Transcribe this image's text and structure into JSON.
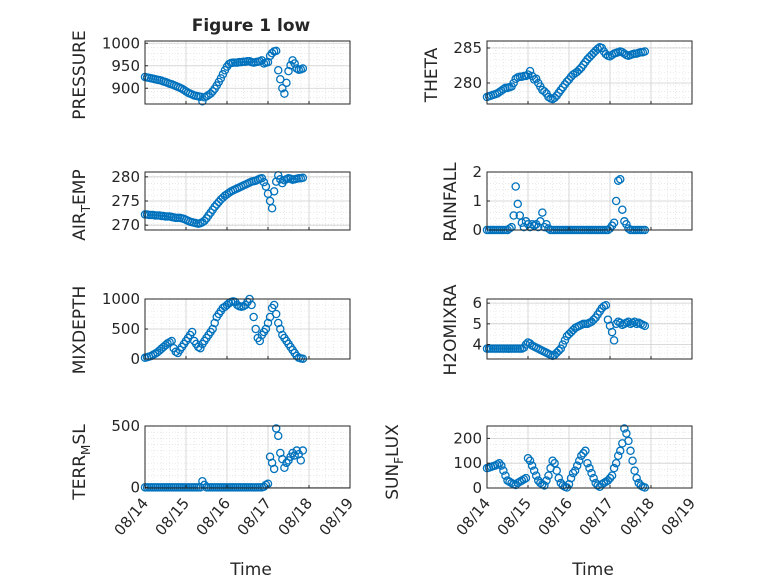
{
  "figure_title": "Figure 1 low",
  "xlabel": "Time",
  "x_tick_labels": [
    "08/14",
    "08/15",
    "08/16",
    "08/17",
    "08/18",
    "08/19"
  ],
  "marker_color": "#0072BD",
  "chart_data": [
    {
      "type": "scatter",
      "title": "Figure 1 low",
      "ylabel": "PRESSURE",
      "xlim": [
        0,
        5
      ],
      "ylim": [
        865,
        1005
      ],
      "yticks": [
        900,
        950,
        1000
      ],
      "grid": true,
      "x": [
        0.0,
        0.05,
        0.1,
        0.15,
        0.2,
        0.25,
        0.3,
        0.35,
        0.4,
        0.45,
        0.5,
        0.55,
        0.6,
        0.65,
        0.7,
        0.75,
        0.8,
        0.85,
        0.9,
        0.95,
        1.0,
        1.05,
        1.1,
        1.15,
        1.2,
        1.25,
        1.3,
        1.35,
        1.4,
        1.45,
        1.5,
        1.55,
        1.6,
        1.65,
        1.7,
        1.75,
        1.8,
        1.85,
        1.9,
        1.95,
        2.0,
        2.05,
        2.1,
        2.15,
        2.2,
        2.25,
        2.3,
        2.35,
        2.4,
        2.45,
        2.5,
        2.55,
        2.6,
        2.65,
        2.7,
        2.75,
        2.8,
        2.85,
        2.9,
        2.95,
        3.0,
        3.05,
        3.1,
        3.15,
        3.2,
        3.25,
        3.3,
        3.35,
        3.4,
        3.45,
        3.5,
        3.55,
        3.6,
        3.65,
        3.7,
        3.75,
        3.8,
        3.85
      ],
      "y": [
        925,
        924,
        923,
        922,
        921,
        920,
        919,
        918,
        917,
        915,
        914,
        912,
        910,
        909,
        907,
        905,
        903,
        901,
        899,
        896,
        893,
        890,
        888,
        886,
        884,
        883,
        882,
        881,
        871,
        880,
        882,
        885,
        888,
        893,
        899,
        906,
        914,
        922,
        931,
        940,
        948,
        954,
        956,
        957,
        957,
        957,
        958,
        958,
        959,
        959,
        960,
        960,
        958,
        957,
        958,
        959,
        960,
        962,
        955,
        957,
        958,
        972,
        978,
        982,
        983,
        940,
        920,
        900,
        888,
        912,
        938,
        951,
        962,
        955,
        944,
        941,
        942,
        944
      ]
    },
    {
      "type": "scatter",
      "ylabel": "THETA",
      "xlim": [
        0,
        5
      ],
      "ylim": [
        277,
        286
      ],
      "yticks": [
        280,
        285
      ],
      "grid": true,
      "x": [
        0.0,
        0.05,
        0.1,
        0.15,
        0.2,
        0.25,
        0.3,
        0.35,
        0.4,
        0.45,
        0.5,
        0.55,
        0.6,
        0.65,
        0.7,
        0.75,
        0.8,
        0.85,
        0.9,
        0.95,
        1.0,
        1.05,
        1.1,
        1.15,
        1.2,
        1.25,
        1.3,
        1.35,
        1.4,
        1.45,
        1.5,
        1.55,
        1.6,
        1.65,
        1.7,
        1.75,
        1.8,
        1.85,
        1.9,
        1.95,
        2.0,
        2.05,
        2.1,
        2.15,
        2.2,
        2.25,
        2.3,
        2.35,
        2.4,
        2.45,
        2.5,
        2.55,
        2.6,
        2.65,
        2.7,
        2.75,
        2.8,
        2.85,
        2.9,
        2.95,
        3.0,
        3.05,
        3.1,
        3.15,
        3.2,
        3.25,
        3.3,
        3.35,
        3.4,
        3.45,
        3.5,
        3.55,
        3.6,
        3.65,
        3.7,
        3.75,
        3.8,
        3.85
      ],
      "y": [
        278.0,
        278.1,
        278.2,
        278.3,
        278.4,
        278.5,
        278.7,
        278.9,
        279.1,
        279.3,
        279.3,
        279.4,
        279.5,
        280.0,
        280.6,
        280.8,
        280.9,
        280.9,
        281.0,
        281.0,
        281.2,
        281.7,
        281.0,
        280.5,
        280.6,
        280.0,
        279.5,
        279.0,
        278.8,
        278.5,
        278.0,
        277.8,
        277.7,
        277.9,
        278.2,
        278.6,
        279.0,
        279.4,
        279.8,
        280.2,
        280.5,
        280.9,
        281.2,
        281.4,
        281.6,
        281.9,
        282.2,
        282.6,
        283.0,
        283.4,
        283.7,
        284.0,
        284.3,
        284.6,
        284.9,
        285.1,
        285.0,
        284.5,
        284.1,
        283.9,
        283.8,
        284.0,
        284.2,
        284.3,
        284.4,
        284.5,
        284.4,
        284.2,
        284.0,
        283.9,
        284.0,
        284.1,
        284.2,
        284.2,
        284.3,
        284.4,
        284.4,
        284.5
      ]
    },
    {
      "type": "scatter",
      "ylabel": "AIR_TEMP",
      "xlim": [
        0,
        5
      ],
      "ylim": [
        269,
        281
      ],
      "yticks": [
        270,
        275,
        280
      ],
      "grid": true,
      "x": [
        0.0,
        0.05,
        0.1,
        0.15,
        0.2,
        0.25,
        0.3,
        0.35,
        0.4,
        0.45,
        0.5,
        0.55,
        0.6,
        0.65,
        0.7,
        0.75,
        0.8,
        0.85,
        0.9,
        0.95,
        1.0,
        1.05,
        1.1,
        1.15,
        1.2,
        1.25,
        1.3,
        1.35,
        1.4,
        1.45,
        1.5,
        1.55,
        1.6,
        1.65,
        1.7,
        1.75,
        1.8,
        1.85,
        1.9,
        1.95,
        2.0,
        2.05,
        2.1,
        2.15,
        2.2,
        2.25,
        2.3,
        2.35,
        2.4,
        2.45,
        2.5,
        2.55,
        2.6,
        2.65,
        2.7,
        2.75,
        2.8,
        2.85,
        2.9,
        2.95,
        3.0,
        3.05,
        3.1,
        3.15,
        3.2,
        3.25,
        3.3,
        3.35,
        3.4,
        3.45,
        3.5,
        3.55,
        3.6,
        3.65,
        3.7,
        3.75,
        3.8,
        3.85
      ],
      "y": [
        272.2,
        272.2,
        272.1,
        272.1,
        272.1,
        272.0,
        272.0,
        272.0,
        271.9,
        271.9,
        271.8,
        271.8,
        271.8,
        271.7,
        271.6,
        271.5,
        271.5,
        271.5,
        271.4,
        271.3,
        271.1,
        270.9,
        270.7,
        270.6,
        270.5,
        270.4,
        270.3,
        270.4,
        270.6,
        270.9,
        271.4,
        272.0,
        272.6,
        273.2,
        273.8,
        274.3,
        274.8,
        275.3,
        275.7,
        276.1,
        276.4,
        276.7,
        277.0,
        277.2,
        277.4,
        277.6,
        277.8,
        278.0,
        278.2,
        278.4,
        278.6,
        278.8,
        279.0,
        279.1,
        279.2,
        279.4,
        279.6,
        279.7,
        278.9,
        278.0,
        276.5,
        275.0,
        273.5,
        277.0,
        279.0,
        280.3,
        279.5,
        278.7,
        279.3,
        279.5,
        279.7,
        279.6,
        279.4,
        279.5,
        279.6,
        279.7,
        279.7,
        279.8
      ]
    },
    {
      "type": "scatter",
      "ylabel": "RAINFALL",
      "xlim": [
        0,
        5
      ],
      "ylim": [
        0,
        2
      ],
      "yticks": [
        0,
        1,
        2
      ],
      "grid": true,
      "x": [
        0.0,
        0.05,
        0.1,
        0.15,
        0.2,
        0.25,
        0.3,
        0.35,
        0.4,
        0.45,
        0.5,
        0.55,
        0.6,
        0.65,
        0.7,
        0.75,
        0.8,
        0.85,
        0.9,
        0.95,
        1.0,
        1.05,
        1.1,
        1.15,
        1.2,
        1.25,
        1.3,
        1.35,
        1.4,
        1.45,
        1.5,
        1.55,
        1.6,
        1.65,
        1.7,
        1.75,
        1.8,
        1.85,
        1.9,
        1.95,
        2.0,
        2.05,
        2.1,
        2.15,
        2.2,
        2.25,
        2.3,
        2.35,
        2.4,
        2.45,
        2.5,
        2.55,
        2.6,
        2.65,
        2.7,
        2.75,
        2.8,
        2.85,
        2.9,
        2.95,
        3.0,
        3.05,
        3.1,
        3.15,
        3.2,
        3.25,
        3.3,
        3.35,
        3.4,
        3.45,
        3.5,
        3.55,
        3.6,
        3.65,
        3.7,
        3.75,
        3.8,
        3.85
      ],
      "y": [
        0,
        0,
        0,
        0,
        0,
        0,
        0,
        0,
        0,
        0,
        0,
        0.05,
        0.1,
        0.5,
        1.5,
        0.9,
        0.5,
        0.25,
        0.1,
        0.3,
        0.2,
        0.1,
        0.2,
        0.15,
        0.2,
        0.1,
        0.3,
        0.6,
        0.1,
        0.2,
        0.05,
        0,
        0,
        0,
        0,
        0,
        0,
        0,
        0,
        0,
        0,
        0,
        0,
        0,
        0,
        0,
        0,
        0,
        0,
        0,
        0,
        0,
        0,
        0,
        0,
        0,
        0,
        0,
        0,
        0,
        0.05,
        0.15,
        0.25,
        1.0,
        1.7,
        1.75,
        0.7,
        0.3,
        0.2,
        0.05,
        0,
        0,
        0,
        0,
        0,
        0,
        0,
        0
      ]
    },
    {
      "type": "scatter",
      "ylabel": "MIXDEPTH",
      "xlim": [
        0,
        5
      ],
      "ylim": [
        0,
        1000
      ],
      "yticks": [
        0,
        500,
        1000
      ],
      "grid": true,
      "x": [
        0.0,
        0.05,
        0.1,
        0.15,
        0.2,
        0.25,
        0.3,
        0.35,
        0.4,
        0.45,
        0.5,
        0.55,
        0.6,
        0.65,
        0.7,
        0.75,
        0.8,
        0.85,
        0.9,
        0.95,
        1.0,
        1.05,
        1.1,
        1.15,
        1.2,
        1.25,
        1.3,
        1.35,
        1.4,
        1.45,
        1.5,
        1.55,
        1.6,
        1.65,
        1.7,
        1.75,
        1.8,
        1.85,
        1.9,
        1.95,
        2.0,
        2.05,
        2.1,
        2.15,
        2.2,
        2.25,
        2.3,
        2.35,
        2.4,
        2.45,
        2.5,
        2.55,
        2.6,
        2.65,
        2.7,
        2.75,
        2.8,
        2.85,
        2.9,
        2.95,
        3.0,
        3.05,
        3.1,
        3.15,
        3.2,
        3.25,
        3.3,
        3.35,
        3.4,
        3.45,
        3.5,
        3.55,
        3.6,
        3.65,
        3.7,
        3.75,
        3.8,
        3.85
      ],
      "y": [
        20,
        30,
        40,
        50,
        70,
        90,
        110,
        140,
        170,
        200,
        230,
        260,
        280,
        300,
        180,
        120,
        100,
        150,
        200,
        250,
        300,
        350,
        400,
        450,
        300,
        250,
        200,
        180,
        250,
        300,
        350,
        400,
        450,
        500,
        600,
        700,
        750,
        800,
        850,
        870,
        900,
        930,
        950,
        960,
        950,
        900,
        880,
        870,
        880,
        900,
        950,
        1000,
        900,
        700,
        500,
        350,
        300,
        400,
        450,
        500,
        600,
        700,
        850,
        900,
        750,
        600,
        500,
        400,
        350,
        300,
        250,
        200,
        150,
        100,
        50,
        20,
        10,
        5
      ]
    },
    {
      "type": "scatter",
      "ylabel": "H2OMIXRA",
      "xlim": [
        0,
        5
      ],
      "ylim": [
        3.3,
        6.2
      ],
      "yticks": [
        4,
        5,
        6
      ],
      "grid": true,
      "x": [
        0.0,
        0.05,
        0.1,
        0.15,
        0.2,
        0.25,
        0.3,
        0.35,
        0.4,
        0.45,
        0.5,
        0.55,
        0.6,
        0.65,
        0.7,
        0.75,
        0.8,
        0.85,
        0.9,
        0.95,
        1.0,
        1.05,
        1.1,
        1.15,
        1.2,
        1.25,
        1.3,
        1.35,
        1.4,
        1.45,
        1.5,
        1.55,
        1.6,
        1.65,
        1.7,
        1.75,
        1.8,
        1.85,
        1.9,
        1.95,
        2.0,
        2.05,
        2.1,
        2.15,
        2.2,
        2.25,
        2.3,
        2.35,
        2.4,
        2.45,
        2.5,
        2.55,
        2.6,
        2.65,
        2.7,
        2.75,
        2.8,
        2.85,
        2.9,
        2.95,
        3.0,
        3.05,
        3.1,
        3.15,
        3.2,
        3.25,
        3.3,
        3.35,
        3.4,
        3.45,
        3.5,
        3.55,
        3.6,
        3.65,
        3.7,
        3.75,
        3.8,
        3.85
      ],
      "y": [
        3.8,
        3.8,
        3.8,
        3.8,
        3.8,
        3.8,
        3.8,
        3.8,
        3.8,
        3.8,
        3.8,
        3.8,
        3.8,
        3.8,
        3.8,
        3.8,
        3.8,
        3.8,
        3.85,
        4.0,
        4.1,
        4.05,
        3.95,
        3.9,
        3.85,
        3.8,
        3.75,
        3.7,
        3.65,
        3.6,
        3.55,
        3.5,
        3.45,
        3.5,
        3.6,
        3.7,
        3.8,
        4.0,
        4.2,
        4.4,
        4.5,
        4.6,
        4.7,
        4.8,
        4.85,
        4.9,
        4.95,
        5.0,
        5.0,
        5.0,
        5.05,
        5.1,
        5.2,
        5.3,
        5.45,
        5.6,
        5.75,
        5.85,
        5.9,
        5.2,
        4.9,
        4.6,
        4.2,
        5.0,
        5.1,
        5.05,
        4.95,
        5.0,
        5.05,
        5.1,
        5.0,
        5.05,
        5.1,
        5.0,
        5.05,
        5.0,
        4.95,
        4.9
      ]
    },
    {
      "type": "scatter",
      "ylabel": "TERR_MSL",
      "xlim": [
        0,
        5
      ],
      "ylim": [
        -5,
        500
      ],
      "yticks": [
        0,
        500
      ],
      "grid": true,
      "x": [
        0.0,
        0.05,
        0.1,
        0.15,
        0.2,
        0.25,
        0.3,
        0.35,
        0.4,
        0.45,
        0.5,
        0.55,
        0.6,
        0.65,
        0.7,
        0.75,
        0.8,
        0.85,
        0.9,
        0.95,
        1.0,
        1.05,
        1.1,
        1.15,
        1.2,
        1.25,
        1.3,
        1.35,
        1.4,
        1.45,
        1.5,
        1.55,
        1.6,
        1.65,
        1.7,
        1.75,
        1.8,
        1.85,
        1.9,
        1.95,
        2.0,
        2.05,
        2.1,
        2.15,
        2.2,
        2.25,
        2.3,
        2.35,
        2.4,
        2.45,
        2.5,
        2.55,
        2.6,
        2.65,
        2.7,
        2.75,
        2.8,
        2.85,
        2.9,
        2.95,
        3.0,
        3.05,
        3.1,
        3.15,
        3.2,
        3.25,
        3.3,
        3.35,
        3.4,
        3.45,
        3.5,
        3.55,
        3.6,
        3.65,
        3.7,
        3.75,
        3.8,
        3.85
      ],
      "y": [
        0,
        0,
        0,
        0,
        0,
        0,
        0,
        0,
        0,
        0,
        0,
        0,
        0,
        0,
        0,
        0,
        0,
        0,
        0,
        0,
        0,
        0,
        0,
        0,
        0,
        0,
        0,
        0,
        50,
        20,
        0,
        0,
        0,
        0,
        0,
        0,
        0,
        0,
        0,
        0,
        0,
        0,
        0,
        0,
        0,
        0,
        0,
        0,
        0,
        0,
        0,
        0,
        0,
        0,
        0,
        0,
        0,
        0,
        5,
        20,
        30,
        250,
        200,
        150,
        480,
        420,
        280,
        230,
        160,
        200,
        220,
        250,
        280,
        260,
        300,
        270,
        220,
        300
      ]
    },
    {
      "type": "scatter",
      "ylabel": "SUN_FLUX",
      "xlim": [
        0,
        5
      ],
      "ylim": [
        0,
        250
      ],
      "yticks": [
        0,
        100,
        200
      ],
      "grid": true,
      "x": [
        0.0,
        0.05,
        0.1,
        0.15,
        0.2,
        0.25,
        0.3,
        0.35,
        0.4,
        0.45,
        0.5,
        0.55,
        0.6,
        0.65,
        0.7,
        0.75,
        0.8,
        0.85,
        0.9,
        0.95,
        1.0,
        1.05,
        1.1,
        1.15,
        1.2,
        1.25,
        1.3,
        1.35,
        1.4,
        1.45,
        1.5,
        1.55,
        1.6,
        1.65,
        1.7,
        1.75,
        1.8,
        1.85,
        1.9,
        1.95,
        2.0,
        2.05,
        2.1,
        2.15,
        2.2,
        2.25,
        2.3,
        2.35,
        2.4,
        2.45,
        2.5,
        2.55,
        2.6,
        2.65,
        2.7,
        2.75,
        2.8,
        2.85,
        2.9,
        2.95,
        3.0,
        3.05,
        3.1,
        3.15,
        3.2,
        3.25,
        3.3,
        3.35,
        3.4,
        3.45,
        3.5,
        3.55,
        3.6,
        3.65,
        3.7,
        3.75,
        3.8,
        3.85
      ],
      "y": [
        80,
        82,
        85,
        88,
        90,
        95,
        100,
        90,
        70,
        50,
        30,
        25,
        20,
        15,
        12,
        20,
        25,
        30,
        35,
        40,
        120,
        110,
        90,
        70,
        50,
        30,
        20,
        15,
        10,
        30,
        50,
        80,
        110,
        100,
        70,
        40,
        20,
        10,
        5,
        2,
        15,
        40,
        60,
        70,
        90,
        110,
        130,
        140,
        150,
        100,
        80,
        60,
        40,
        20,
        10,
        5,
        15,
        20,
        25,
        30,
        40,
        50,
        80,
        100,
        130,
        150,
        180,
        240,
        220,
        190,
        150,
        110,
        70,
        40,
        20,
        10,
        5,
        2
      ]
    }
  ]
}
